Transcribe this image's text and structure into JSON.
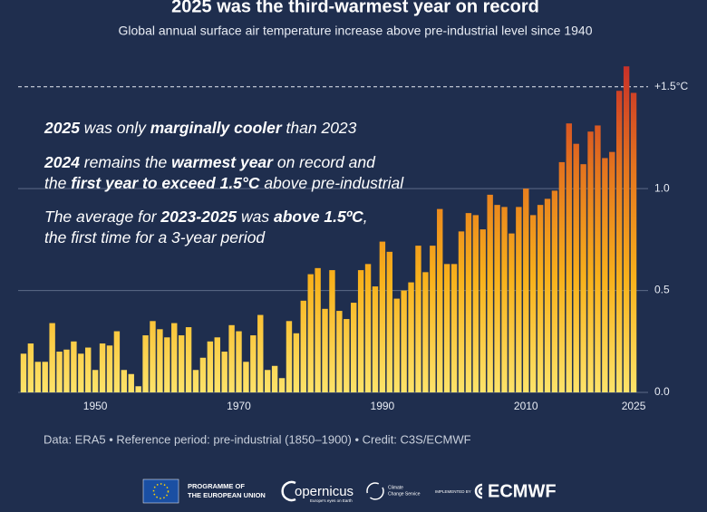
{
  "chart_data": {
    "type": "bar",
    "title": "2025 was the third-warmest year on record",
    "subtitle": "Global annual surface air temperature increase above pre-industrial level since 1940",
    "x": [
      1940,
      1941,
      1942,
      1943,
      1944,
      1945,
      1946,
      1947,
      1948,
      1949,
      1950,
      1951,
      1952,
      1953,
      1954,
      1955,
      1956,
      1957,
      1958,
      1959,
      1960,
      1961,
      1962,
      1963,
      1964,
      1965,
      1966,
      1967,
      1968,
      1969,
      1970,
      1971,
      1972,
      1973,
      1974,
      1975,
      1976,
      1977,
      1978,
      1979,
      1980,
      1981,
      1982,
      1983,
      1984,
      1985,
      1986,
      1987,
      1988,
      1989,
      1990,
      1991,
      1992,
      1993,
      1994,
      1995,
      1996,
      1997,
      1998,
      1999,
      2000,
      2001,
      2002,
      2003,
      2004,
      2005,
      2006,
      2007,
      2008,
      2009,
      2010,
      2011,
      2012,
      2013,
      2014,
      2015,
      2016,
      2017,
      2018,
      2019,
      2020,
      2021,
      2022,
      2023,
      2024,
      2025
    ],
    "values": [
      0.19,
      0.24,
      0.15,
      0.15,
      0.34,
      0.2,
      0.21,
      0.25,
      0.19,
      0.22,
      0.11,
      0.24,
      0.23,
      0.3,
      0.11,
      0.09,
      0.03,
      0.28,
      0.35,
      0.31,
      0.27,
      0.34,
      0.28,
      0.32,
      0.11,
      0.17,
      0.25,
      0.27,
      0.2,
      0.33,
      0.3,
      0.15,
      0.28,
      0.38,
      0.11,
      0.13,
      0.07,
      0.35,
      0.29,
      0.45,
      0.58,
      0.61,
      0.41,
      0.6,
      0.4,
      0.36,
      0.44,
      0.6,
      0.63,
      0.52,
      0.74,
      0.69,
      0.46,
      0.5,
      0.54,
      0.72,
      0.59,
      0.72,
      0.9,
      0.63,
      0.63,
      0.79,
      0.88,
      0.87,
      0.8,
      0.97,
      0.92,
      0.91,
      0.78,
      0.91,
      1.0,
      0.87,
      0.92,
      0.95,
      0.99,
      1.13,
      1.32,
      1.22,
      1.12,
      1.28,
      1.31,
      1.15,
      1.18,
      1.48,
      1.6,
      1.47
    ],
    "gradient": [
      "#fde36a",
      "#f8b21c",
      "#e4741e",
      "#c52a2a"
    ],
    "xlim": [
      1939.5,
      2025.5
    ],
    "xticks": [
      1950,
      1970,
      1990,
      2010,
      2025
    ],
    "ylim": [
      0,
      1.65
    ],
    "yticks": [
      {
        "value": 0,
        "label": "0.0"
      },
      0.5,
      {
        "value": 1.0,
        "label": "1.0"
      },
      {
        "value": 1.5,
        "label": "+1.5°C"
      }
    ],
    "grid": true,
    "last_tick_dashed": true,
    "annotations": [
      [
        [
          "2025",
          " was only ",
          "marginally cooler",
          " than 2023"
        ]
      ],
      [
        [
          "2024",
          " remains the ",
          "warmest year",
          " on record and"
        ],
        [
          "the ",
          "first year to exceed 1.5°C",
          " above pre-industrial"
        ]
      ],
      [
        [
          "The average for ",
          "2023-2025",
          " was ",
          "above 1.5ºC",
          ","
        ],
        [
          "the first time for a 3-year period"
        ]
      ]
    ],
    "footer": "Data: ERA5 • Reference period: pre-industrial (1850–1900) • Credit: C3S/ECMWF"
  },
  "logos": {
    "eu": [
      "PROGRAMME OF",
      "THE EUROPEAN UNION"
    ],
    "copernicus": "opernicus",
    "copernicus_tag": "Europe's eyes on Earth",
    "c3s": [
      "Climate",
      "Change Service"
    ],
    "implemented": "IMPLEMENTED BY",
    "ecmwf": "ECMWF"
  }
}
